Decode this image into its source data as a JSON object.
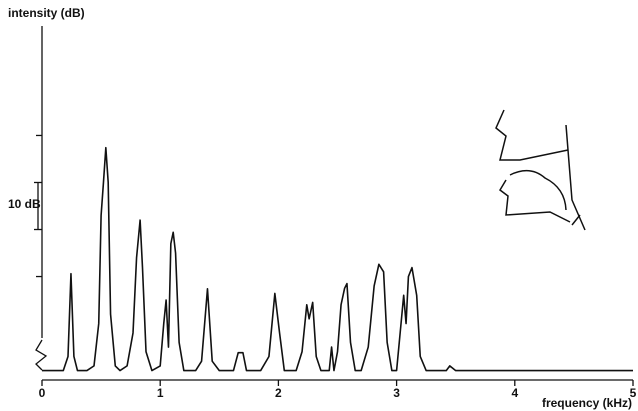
{
  "chart_data": {
    "type": "line",
    "y_label": "intensity (dB)",
    "x_label": "frequency (kHz)",
    "scale_bar": {
      "label": "10 dB",
      "values": [
        30,
        40
      ]
    },
    "color": "#111111",
    "xlim": [
      0,
      5
    ],
    "xticks": [
      0,
      1,
      2,
      3,
      4,
      5
    ],
    "ylim": [
      -2,
      72
    ],
    "yticks": [
      20,
      50
    ],
    "x": [
      0,
      0.18,
      0.22,
      0.245,
      0.27,
      0.3,
      0.38,
      0.44,
      0.48,
      0.5,
      0.52,
      0.54,
      0.56,
      0.58,
      0.62,
      0.66,
      0.72,
      0.77,
      0.8,
      0.83,
      0.85,
      0.88,
      0.93,
      1.0,
      1.03,
      1.05,
      1.07,
      1.09,
      1.11,
      1.13,
      1.16,
      1.2,
      1.3,
      1.35,
      1.4,
      1.44,
      1.5,
      1.62,
      1.66,
      1.7,
      1.73,
      1.85,
      1.92,
      1.97,
      2.01,
      2.05,
      2.15,
      2.2,
      2.24,
      2.26,
      2.29,
      2.32,
      2.36,
      2.43,
      2.45,
      2.47,
      2.5,
      2.53,
      2.56,
      2.58,
      2.61,
      2.65,
      2.7,
      2.76,
      2.81,
      2.85,
      2.89,
      2.92,
      2.96,
      3.0,
      3.03,
      3.06,
      3.08,
      3.1,
      3.13,
      3.17,
      3.2,
      3.25,
      3.42,
      3.45,
      3.5,
      5.0
    ],
    "values": [
      0,
      0,
      3,
      20.6,
      3,
      0,
      0,
      1,
      10,
      33,
      40,
      47.4,
      40,
      12,
      1,
      0,
      1,
      8,
      24,
      32,
      22,
      4,
      0,
      1,
      10,
      15,
      5,
      27,
      29.4,
      25,
      6,
      0,
      0,
      2,
      17.4,
      2,
      0,
      0,
      3.8,
      3.8,
      0,
      0,
      3,
      16.4,
      8,
      0,
      0,
      4,
      14,
      11,
      14.5,
      3,
      0,
      0,
      5,
      0,
      4,
      14,
      17.5,
      18.5,
      6,
      0,
      0,
      5,
      18,
      22.6,
      21,
      6,
      0,
      0,
      8,
      16,
      10,
      20,
      21.9,
      16,
      3,
      0,
      0,
      1,
      0,
      0
    ]
  }
}
